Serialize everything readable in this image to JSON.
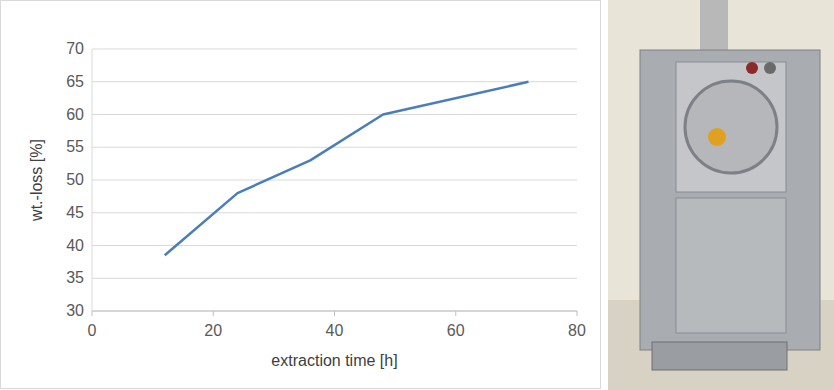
{
  "chart_data": {
    "type": "line",
    "x_label": "extraction time [h]",
    "y_label": "wt.-loss [%]",
    "x": [
      12,
      24,
      36,
      48,
      72
    ],
    "values": [
      38.5,
      48,
      53,
      60,
      65
    ],
    "color": "#4a7ebb",
    "xlim": [
      0,
      80
    ],
    "xticks": [
      0,
      20,
      40,
      60,
      80
    ],
    "ylim": [
      30,
      70
    ],
    "yticks": [
      30,
      35,
      40,
      45,
      50,
      55,
      60,
      65,
      70
    ],
    "grid": true
  }
}
